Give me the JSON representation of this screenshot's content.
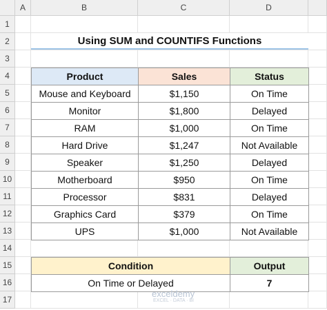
{
  "columns": [
    "A",
    "B",
    "C",
    "D"
  ],
  "rows": [
    "1",
    "2",
    "3",
    "4",
    "5",
    "6",
    "7",
    "8",
    "9",
    "10",
    "11",
    "12",
    "13",
    "14",
    "15",
    "16",
    "17"
  ],
  "title": "Using SUM and COUNTIFS Functions",
  "table": {
    "header": [
      "Product",
      "Sales",
      "Status"
    ],
    "rows": [
      [
        "Mouse and Keyboard",
        "$1,150",
        "On Time"
      ],
      [
        "Monitor",
        "$1,800",
        "Delayed"
      ],
      [
        "RAM",
        "$1,000",
        "On Time"
      ],
      [
        "Hard Drive",
        "$1,247",
        "Not Available"
      ],
      [
        "Speaker",
        "$1,250",
        "Delayed"
      ],
      [
        "Motherboard",
        "$950",
        "On Time"
      ],
      [
        "Processor",
        "$831",
        "Delayed"
      ],
      [
        "Graphics Card",
        "$379",
        "On Time"
      ],
      [
        "UPS",
        "$1,000",
        "Not Available"
      ]
    ]
  },
  "summary": {
    "header": [
      "Condition",
      "Output"
    ],
    "rows": [
      [
        "On Time or Delayed",
        "7"
      ]
    ]
  },
  "watermark": {
    "name": "exceldemy",
    "tagline": "EXCEL · DATA · BI"
  }
}
